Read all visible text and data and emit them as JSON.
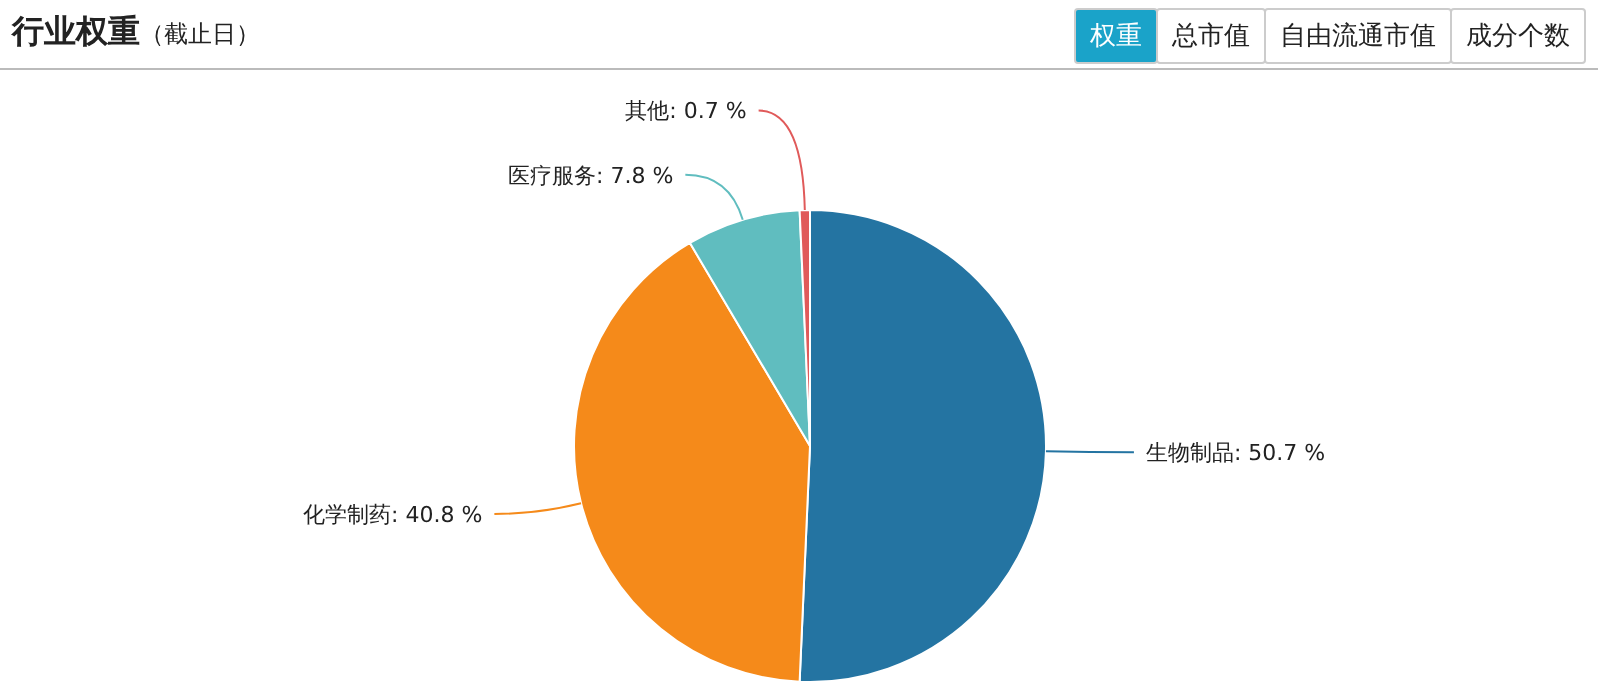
{
  "chart_data": {
    "type": "pie",
    "title": "行业权重",
    "subtitle": "（截止日）",
    "annotations": [
      "权重",
      "总市值",
      "自由流通市值",
      "成分个数"
    ],
    "categories": [
      "生物制品",
      "化学制药",
      "医疗服务",
      "其他"
    ],
    "values": [
      50.7,
      40.8,
      7.8,
      0.7
    ],
    "value_labels": [
      "50.7 %",
      "40.8 %",
      "7.8 %",
      "0.7 %"
    ],
    "colors": [
      "#2474a2",
      "#f58a1a",
      "#60bdbf",
      "#e05a5a"
    ],
    "legend": false
  }
}
